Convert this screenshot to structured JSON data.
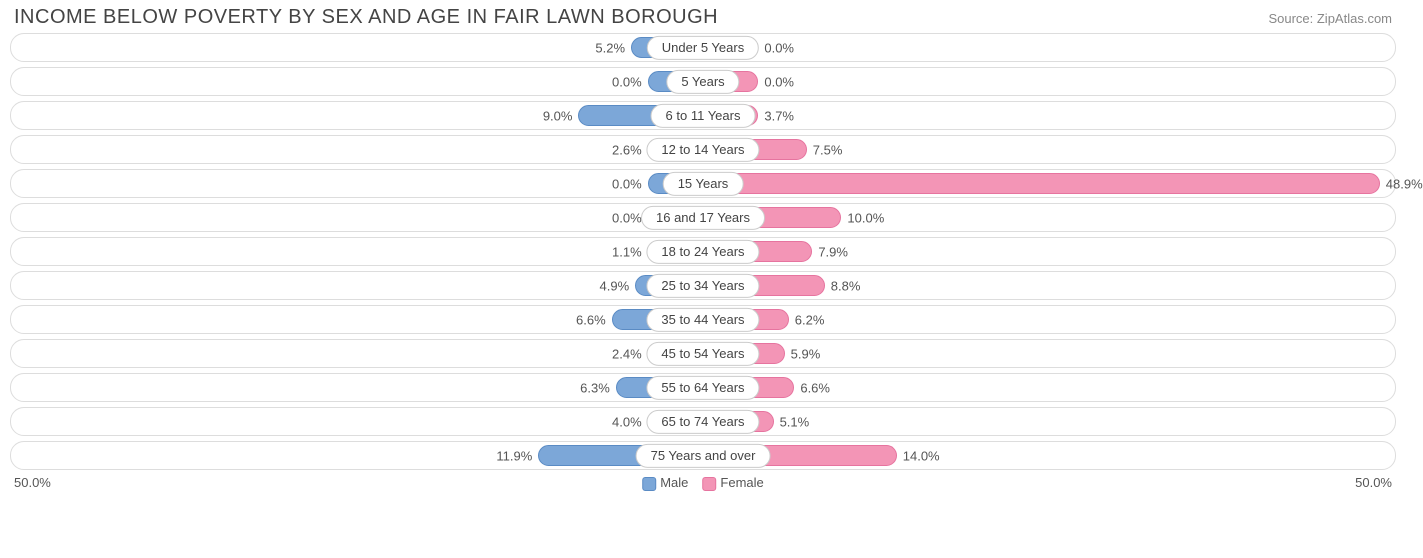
{
  "title": "INCOME BELOW POVERTY BY SEX AND AGE IN FAIR LAWN BOROUGH",
  "source": "Source: ZipAtlas.com",
  "chart": {
    "type": "diverging-bar",
    "axis_max": 50.0,
    "axis_label_left": "50.0%",
    "axis_label_right": "50.0%",
    "male_color": "#7ca7d8",
    "male_border": "#5a8bc4",
    "female_color": "#f395b6",
    "female_border": "#e6749f",
    "row_border": "#dddddd",
    "text_color": "#555555",
    "min_half_pct": 8.0,
    "rows": [
      {
        "label": "Under 5 Years",
        "male": 5.2,
        "female": 0.0
      },
      {
        "label": "5 Years",
        "male": 0.0,
        "female": 0.0
      },
      {
        "label": "6 to 11 Years",
        "male": 9.0,
        "female": 3.7
      },
      {
        "label": "12 to 14 Years",
        "male": 2.6,
        "female": 7.5
      },
      {
        "label": "15 Years",
        "male": 0.0,
        "female": 48.9
      },
      {
        "label": "16 and 17 Years",
        "male": 0.0,
        "female": 10.0
      },
      {
        "label": "18 to 24 Years",
        "male": 1.1,
        "female": 7.9
      },
      {
        "label": "25 to 34 Years",
        "male": 4.9,
        "female": 8.8
      },
      {
        "label": "35 to 44 Years",
        "male": 6.6,
        "female": 6.2
      },
      {
        "label": "45 to 54 Years",
        "male": 2.4,
        "female": 5.9
      },
      {
        "label": "55 to 64 Years",
        "male": 6.3,
        "female": 6.6
      },
      {
        "label": "65 to 74 Years",
        "male": 4.0,
        "female": 5.1
      },
      {
        "label": "75 Years and over",
        "male": 11.9,
        "female": 14.0
      }
    ],
    "legend": {
      "male": "Male",
      "female": "Female"
    }
  }
}
